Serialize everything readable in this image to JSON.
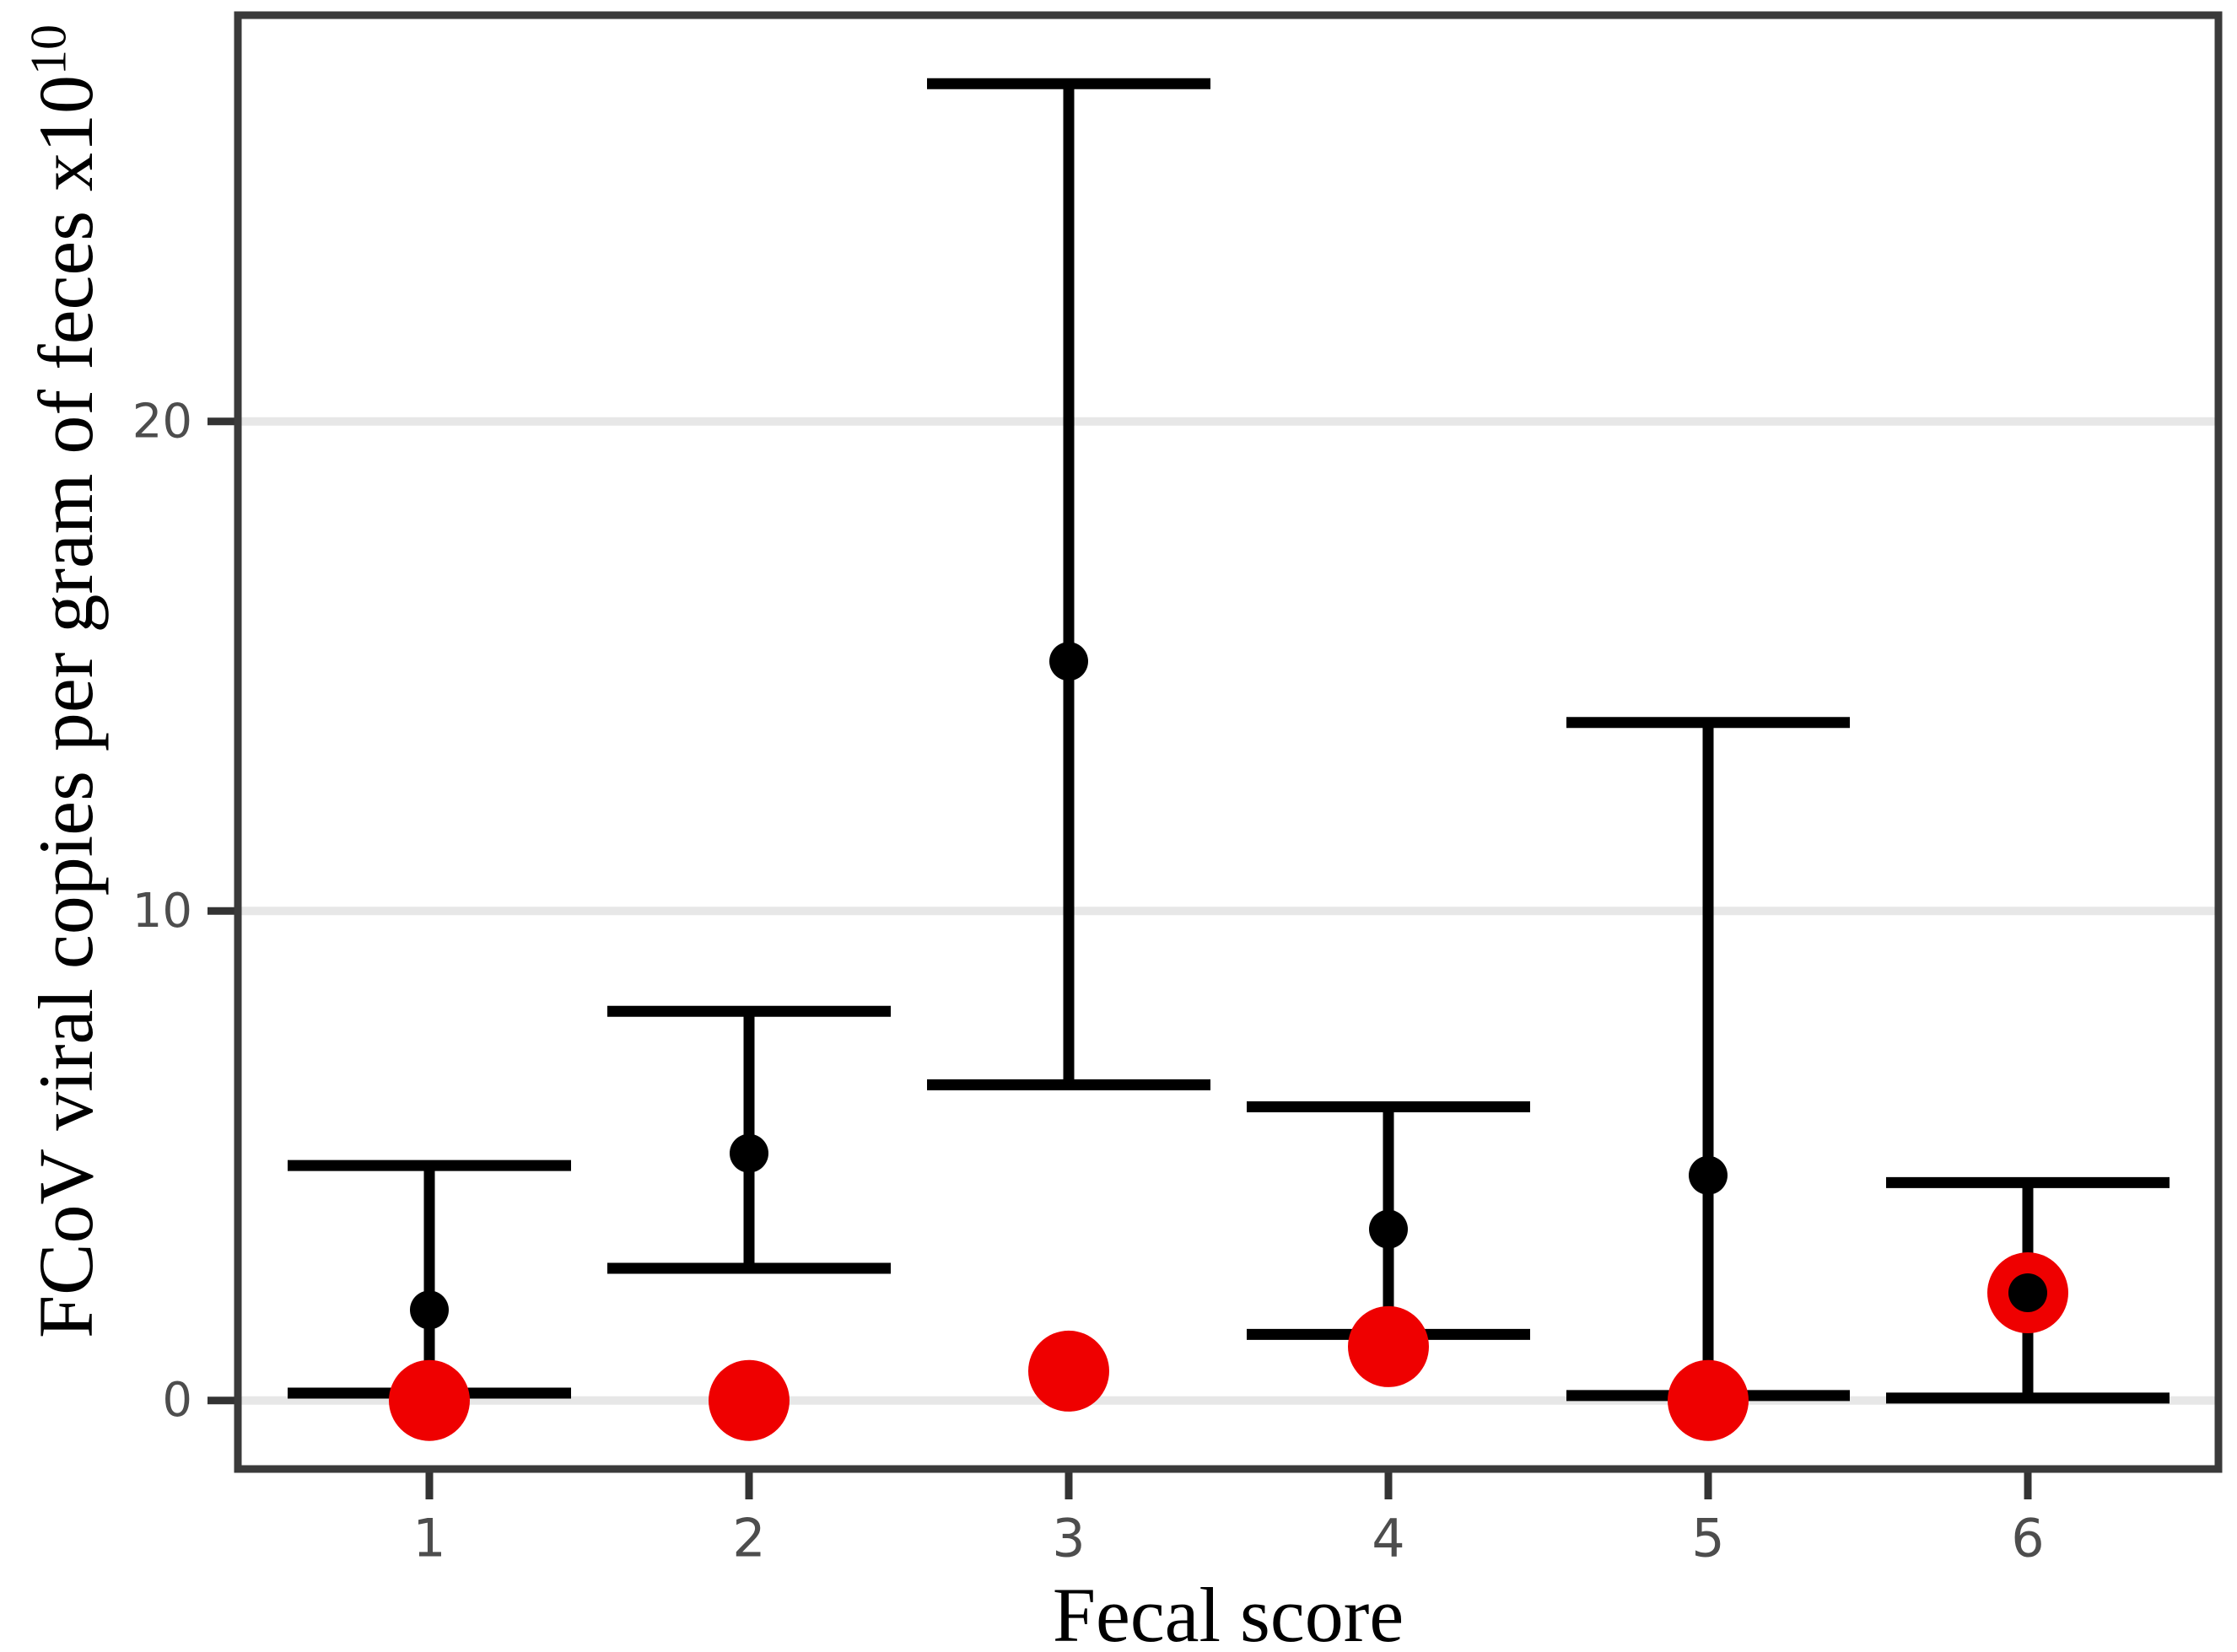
{
  "figure": {
    "xlabel": "Fecal score",
    "ylabel_main": "FCoV viral copies per gram of feces x10",
    "ylabel_sup": "10"
  },
  "chart_data": {
    "type": "scatter",
    "subtype": "dot-with-error-bars",
    "title": "",
    "xlabel": "Fecal score",
    "ylabel": "FCoV viral copies per gram of feces x10^10",
    "categories": [
      "1",
      "2",
      "3",
      "4",
      "5",
      "6"
    ],
    "yticks": [
      0,
      10,
      20
    ],
    "ylim": [
      -1.4,
      28.3
    ],
    "grid": "horizontal-light-gray-at-yticks",
    "legend_position": "none",
    "series": [
      {
        "name": "mean-black-dot",
        "values": [
          1.85,
          5.05,
          15.1,
          3.5,
          4.6,
          2.2
        ]
      },
      {
        "name": "error-bar-upper-cap",
        "values": [
          4.8,
          7.95,
          26.9,
          6.0,
          13.85,
          4.45
        ]
      },
      {
        "name": "error-bar-lower-cap",
        "values": [
          0.15,
          2.7,
          6.45,
          1.35,
          0.1,
          0.05
        ]
      },
      {
        "name": "median-red-dot",
        "values": [
          0.0,
          0.0,
          0.6,
          1.1,
          0.0,
          2.2
        ]
      }
    ],
    "colors": {
      "mean_dot": "#000000",
      "error_bar": "#000000",
      "median_dot": "#EF0000",
      "gridline": "#E7E7E7",
      "panel_border": "#3A3A3A",
      "tick_mark": "#333333",
      "tick_label": "#4D4D4D",
      "axis_title": "#000000",
      "background": "#FFFFFF"
    }
  }
}
